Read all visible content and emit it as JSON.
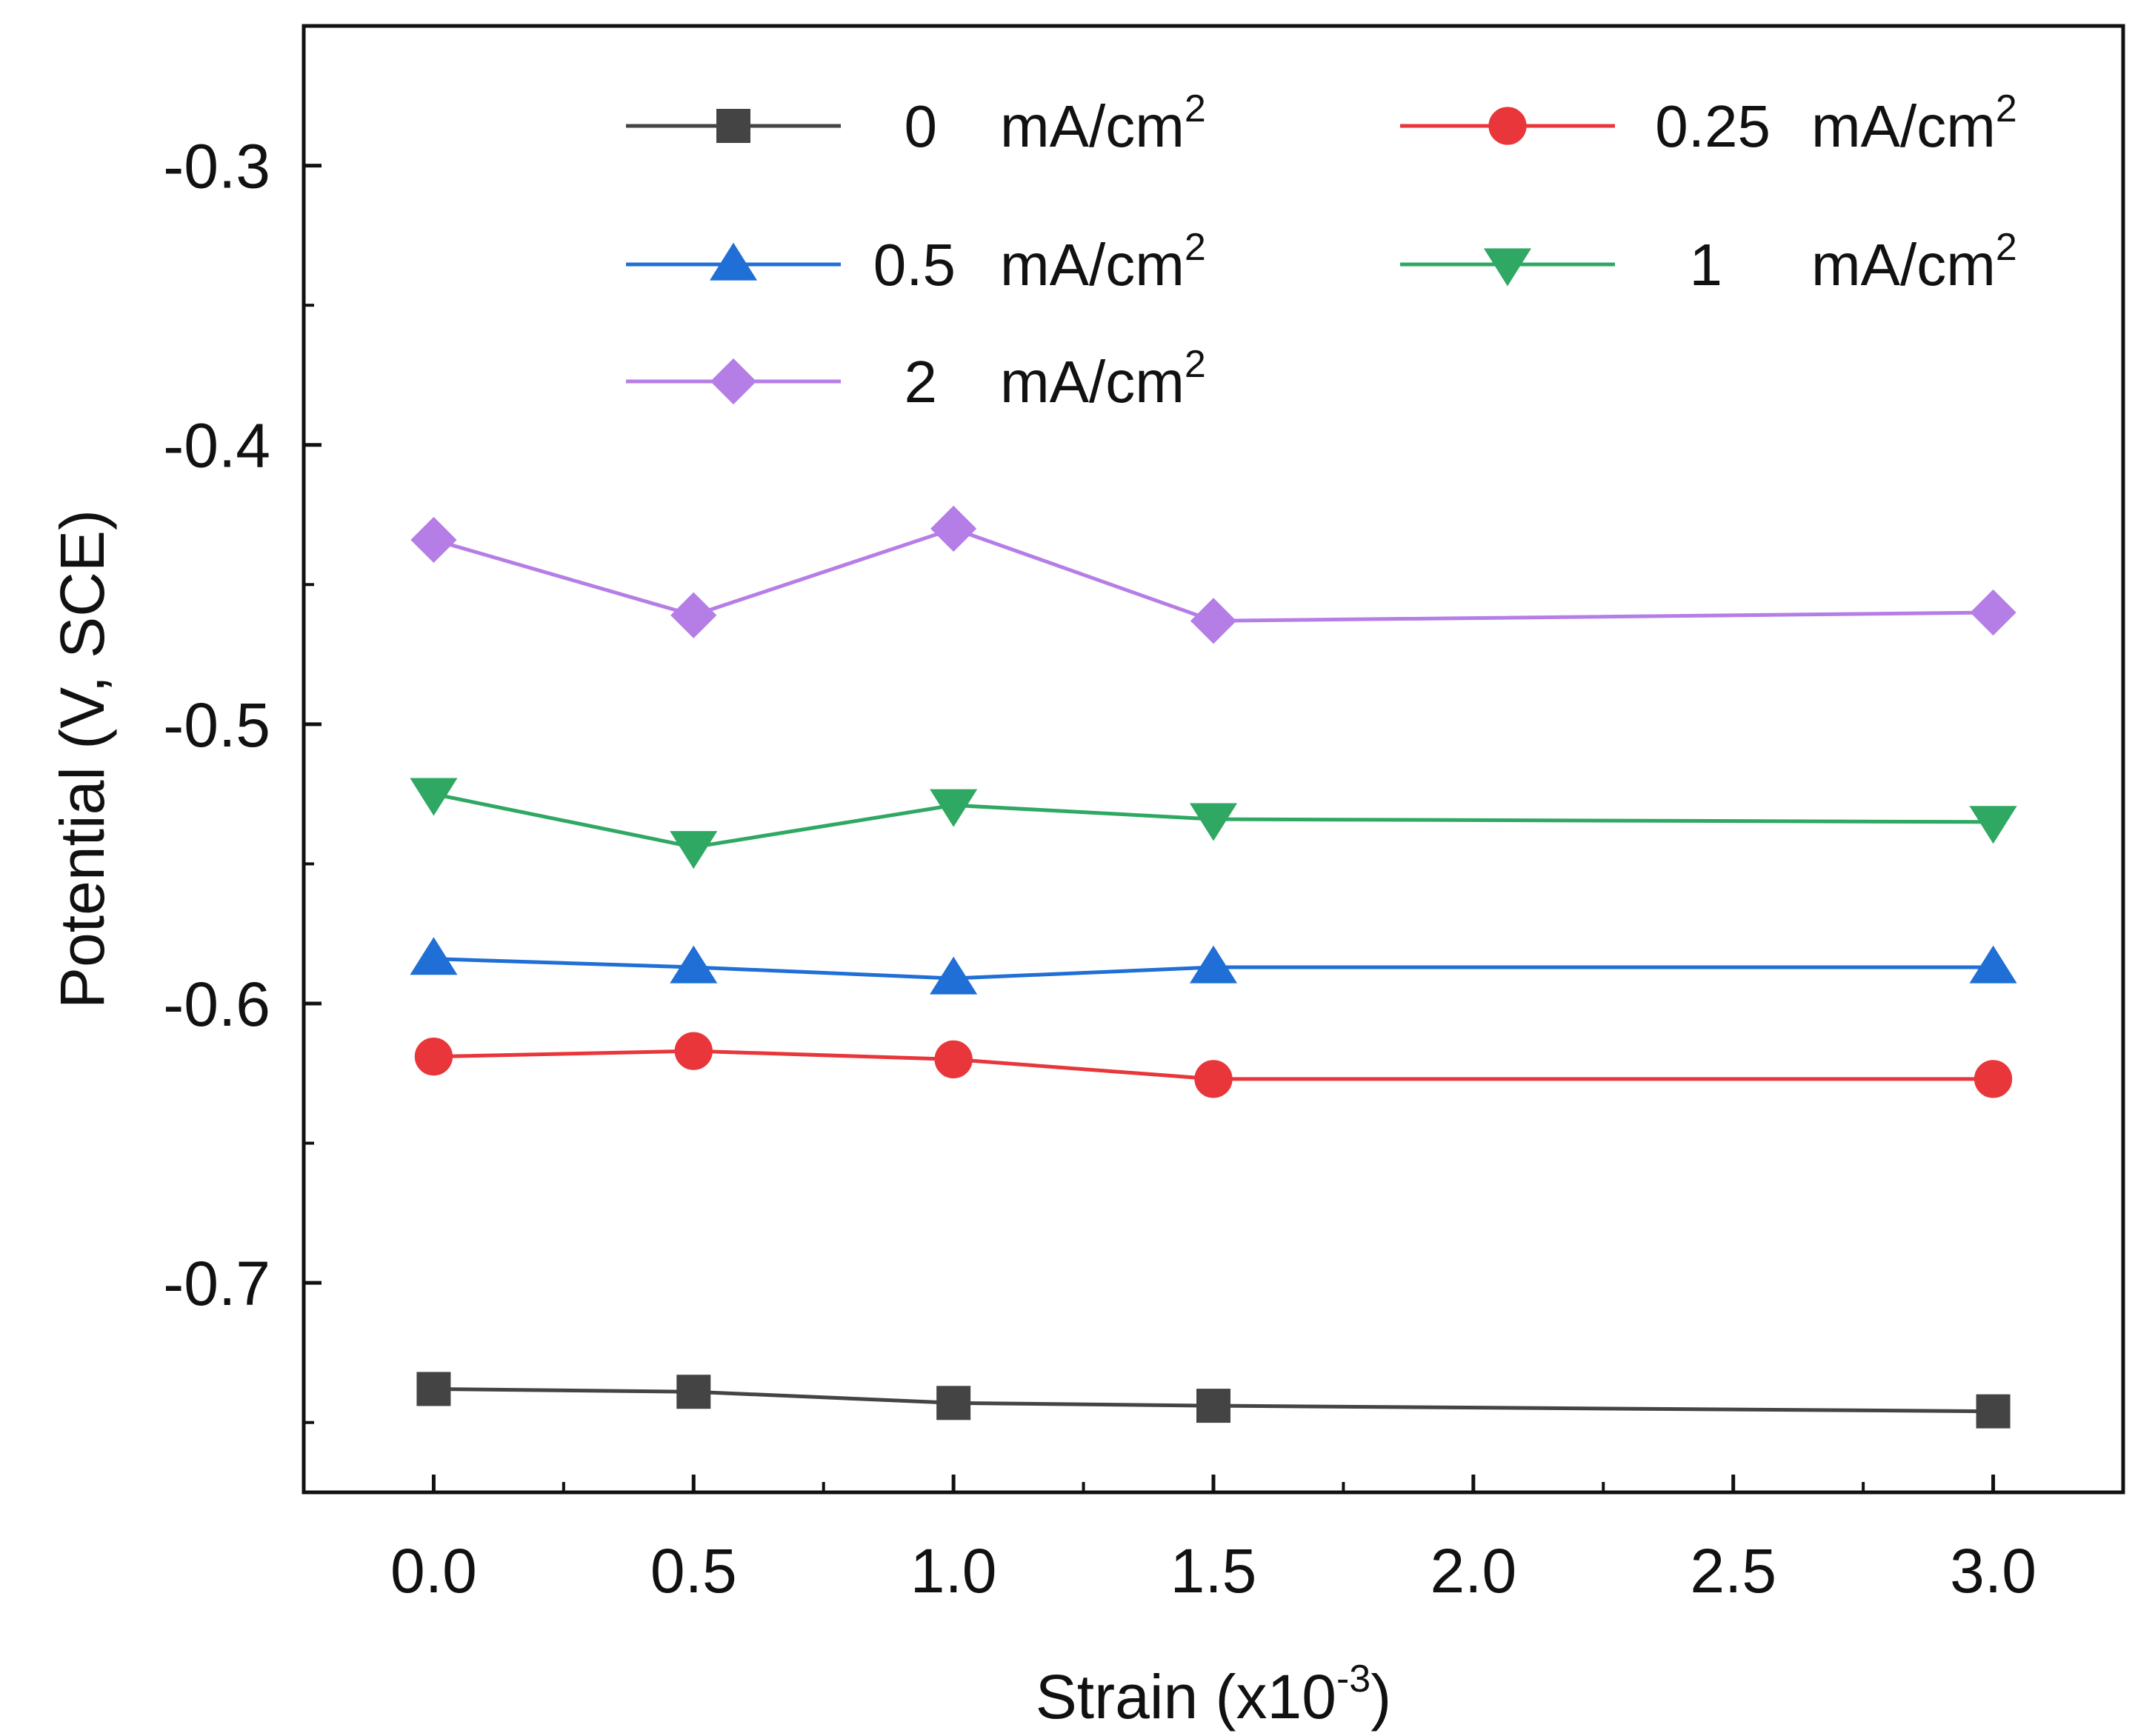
{
  "chart_data": {
    "type": "line",
    "xlabel": "Strain (x10",
    "xlabel_sup": "-3",
    "xlabel_end": ")",
    "ylabel": "Potential (V, SCE)",
    "xlim": [
      -0.25,
      3.25
    ],
    "ylim": [
      -0.775,
      -0.25
    ],
    "xticks": [
      0.0,
      0.5,
      1.0,
      1.5,
      2.0,
      2.5,
      3.0
    ],
    "xtick_labels": [
      "0.0",
      "0.5",
      "1.0",
      "1.5",
      "2.0",
      "2.5",
      "3.0"
    ],
    "yticks": [
      -0.3,
      -0.4,
      -0.5,
      -0.6,
      -0.7
    ],
    "ytick_labels": [
      "-0.3",
      "-0.4",
      "-0.5",
      "-0.6",
      "-0.7"
    ],
    "legend_position": "top",
    "grid": false,
    "x": [
      0.0,
      0.5,
      1.0,
      1.5,
      3.0
    ],
    "series": [
      {
        "name_value": "0",
        "name_unit": "mA/cm",
        "name_sup": "2",
        "color": "#444444",
        "marker": "square",
        "values": [
          -0.738,
          -0.739,
          -0.743,
          -0.744,
          -0.746
        ]
      },
      {
        "name_value": "0.25",
        "name_unit": "mA/cm",
        "name_sup": "2",
        "color": "#e8363a",
        "marker": "circle",
        "values": [
          -0.619,
          -0.617,
          -0.62,
          -0.627,
          -0.627
        ]
      },
      {
        "name_value": "0.5",
        "name_unit": "mA/cm",
        "name_sup": "2",
        "color": "#1f6fd6",
        "marker": "triangle-up",
        "values": [
          -0.584,
          -0.587,
          -0.591,
          -0.587,
          -0.587
        ]
      },
      {
        "name_value": "1",
        "name_unit": "mA/cm",
        "name_sup": "2",
        "color": "#2ea862",
        "marker": "triangle-down",
        "values": [
          -0.525,
          -0.544,
          -0.529,
          -0.534,
          -0.535
        ]
      },
      {
        "name_value": "2",
        "name_unit": "mA/cm",
        "name_sup": "2",
        "color": "#b57ee6",
        "marker": "diamond",
        "values": [
          -0.434,
          -0.461,
          -0.43,
          -0.463,
          -0.46
        ]
      }
    ]
  }
}
